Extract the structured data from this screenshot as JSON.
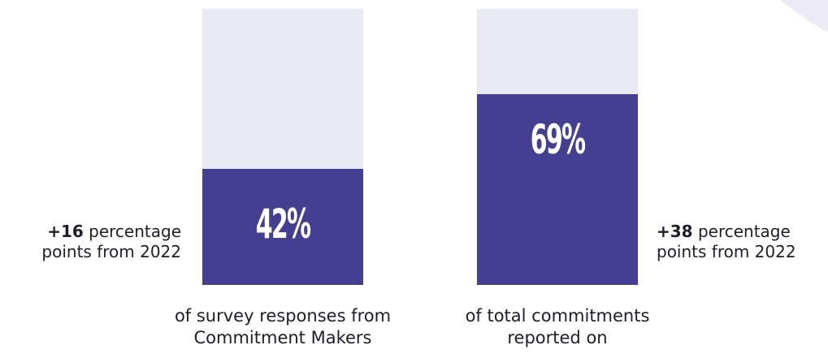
{
  "chart_data": {
    "type": "bar",
    "ylim": [
      0,
      100
    ],
    "series": [
      {
        "value": 42,
        "value_label": "42%",
        "caption_lines": [
          "of survey responses from",
          "Commitment Makers"
        ],
        "change_value": "+16",
        "change_text_1": "percentage",
        "change_text_2": "points from 2022"
      },
      {
        "value": 69,
        "value_label": "69%",
        "caption_lines": [
          "of total commitments",
          "reported on"
        ],
        "change_value": "+38",
        "change_text_1": "percentage",
        "change_text_2": "points from 2022"
      }
    ]
  },
  "colors": {
    "fill": "#453f92",
    "track": "#e9e9f3",
    "text": "#1e1e2a"
  }
}
